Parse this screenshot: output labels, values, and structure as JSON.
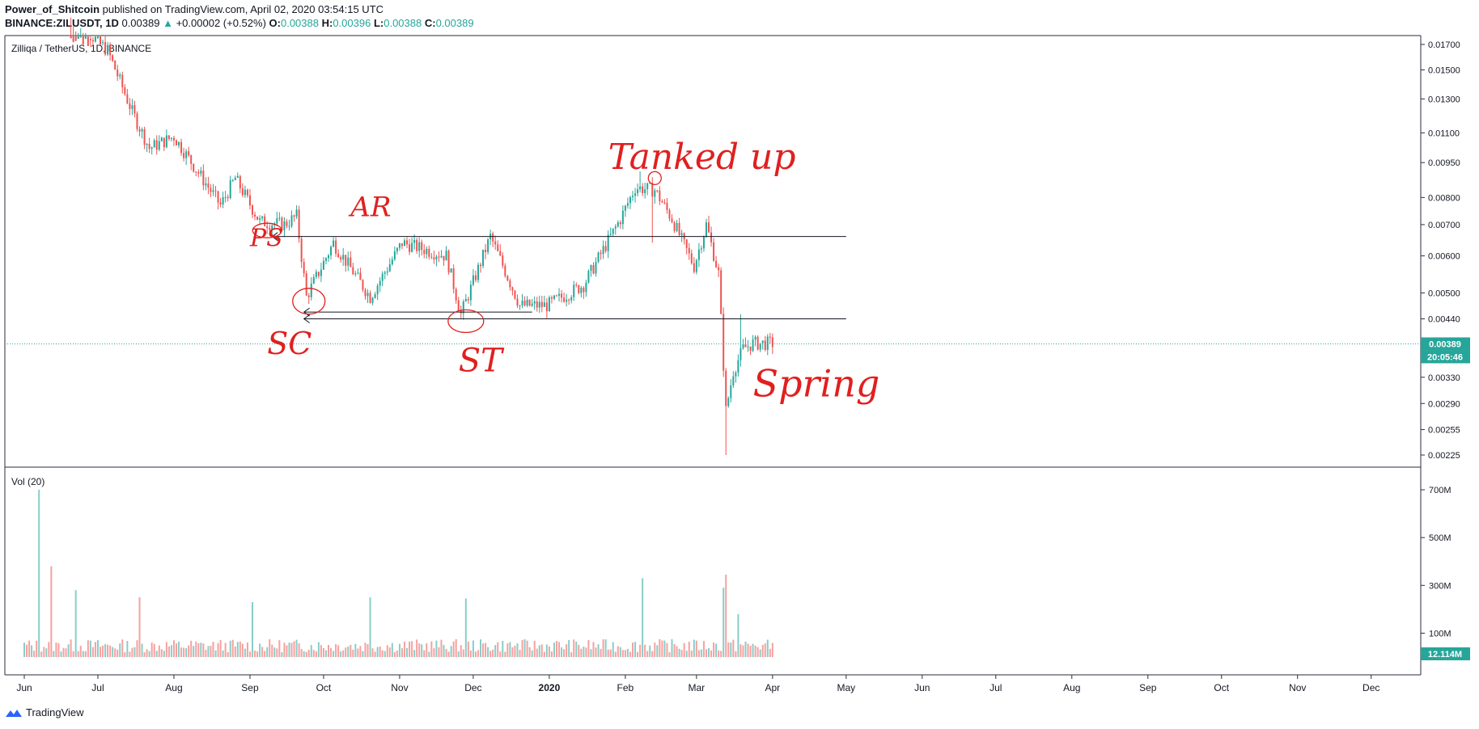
{
  "header": {
    "author": "Power_of_Shitcoin",
    "published_text": "published on TradingView.com, April 02, 2020 03:54:15 UTC",
    "symbol": "BINANCE:ZILUSDT, 1D",
    "last": "0.00389",
    "change": "+0.00002 (+0.52%)",
    "o_label": "O:",
    "o": "0.00388",
    "h_label": "H:",
    "h": "0.00396",
    "l_label": "L:",
    "l": "0.00388",
    "c_label": "C:",
    "c": "0.00389",
    "up_arrow": "▲"
  },
  "chart_data": {
    "type": "candlestick",
    "title": "Zilliqa / TetherUS, 1D, BINANCE",
    "price_axis": {
      "scale": "log",
      "ticks": [
        "0.01700",
        "0.01500",
        "0.01300",
        "0.01100",
        "0.00950",
        "0.00800",
        "0.00700",
        "0.00600",
        "0.00500",
        "0.00440",
        "0.00330",
        "0.00290",
        "0.00255",
        "0.00225"
      ],
      "last_price_label": "0.00389",
      "countdown_label": "20:05:46"
    },
    "time_axis": {
      "ticks": [
        "Jun",
        "Jul",
        "Aug",
        "Sep",
        "Oct",
        "Nov",
        "Dec",
        "2020",
        "Feb",
        "Mar",
        "Apr",
        "May",
        "Jun",
        "Jul",
        "Aug",
        "Sep",
        "Oct",
        "Nov",
        "Dec"
      ]
    },
    "price_path": [
      [
        "2019-06-20",
        0.0195
      ],
      [
        "2019-07-05",
        0.0165
      ],
      [
        "2019-07-15",
        0.0122
      ],
      [
        "2019-07-22",
        0.0102
      ],
      [
        "2019-08-01",
        0.0108
      ],
      [
        "2019-08-10",
        0.0092
      ],
      [
        "2019-08-20",
        0.0077
      ],
      [
        "2019-08-26",
        0.0088
      ],
      [
        "2019-09-05",
        0.0071
      ],
      [
        "2019-09-15",
        0.007
      ],
      [
        "2019-09-20",
        0.0073
      ],
      [
        "2019-09-24",
        0.0049
      ],
      [
        "2019-10-05",
        0.0064
      ],
      [
        "2019-10-20",
        0.0049
      ],
      [
        "2019-11-02",
        0.0064
      ],
      [
        "2019-11-20",
        0.006
      ],
      [
        "2019-11-26",
        0.0045
      ],
      [
        "2019-12-08",
        0.0066
      ],
      [
        "2019-12-20",
        0.0047
      ],
      [
        "2019-12-31",
        0.0047
      ],
      [
        "2020-01-15",
        0.0052
      ],
      [
        "2020-01-30",
        0.0072
      ],
      [
        "2020-02-05",
        0.0084
      ],
      [
        "2020-02-13",
        0.0083
      ],
      [
        "2020-02-20",
        0.0072
      ],
      [
        "2020-02-29",
        0.0057
      ],
      [
        "2020-03-05",
        0.007
      ],
      [
        "2020-03-10",
        0.0055
      ],
      [
        "2020-03-13",
        0.0028
      ],
      [
        "2020-03-16",
        0.0034
      ],
      [
        "2020-03-20",
        0.0038
      ],
      [
        "2020-03-24",
        0.0039
      ],
      [
        "2020-04-01",
        0.0039
      ]
    ],
    "spikes": [
      [
        "2020-02-07",
        0.0091
      ],
      [
        "2020-02-12",
        0.0064
      ],
      [
        "2020-03-13",
        0.00225
      ],
      [
        "2020-03-19",
        0.0045
      ]
    ],
    "horizontal_lines": [
      {
        "y": 0.0066,
        "x_start": "2019-09-10",
        "x_end": "2020-05-01"
      },
      {
        "y": 0.0044,
        "x_start": "2019-09-23",
        "x_end": "2020-05-01"
      },
      {
        "y": 0.00455,
        "x_start": "2019-09-23",
        "x_end": "2019-12-25"
      }
    ],
    "annotations": [
      {
        "text": "PS",
        "x": "2019-09-01",
        "y": 0.0063
      },
      {
        "text": "AR",
        "x": "2019-10-12",
        "y": 0.0073
      },
      {
        "text": "SC",
        "x": "2019-09-08",
        "y": 0.0037
      },
      {
        "text": "ST",
        "x": "2019-11-25",
        "y": 0.0034
      },
      {
        "text": "Tanked up",
        "x": "2020-01-25",
        "y": 0.0092
      },
      {
        "text": "Spring",
        "x": "2020-03-24",
        "y": 0.003
      }
    ],
    "volume": {
      "label": "Vol (20)",
      "ticks": [
        "700M",
        "500M",
        "300M",
        "100M"
      ],
      "last_label": "12.114M",
      "spikes": [
        [
          "2019-06-07",
          700
        ],
        [
          "2019-06-12",
          380
        ],
        [
          "2019-06-22",
          280
        ],
        [
          "2019-07-18",
          250
        ],
        [
          "2019-09-02",
          230
        ],
        [
          "2019-10-20",
          250
        ],
        [
          "2019-11-28",
          245
        ],
        [
          "2020-02-08",
          330
        ],
        [
          "2020-03-12",
          290
        ],
        [
          "2020-03-13",
          345
        ],
        [
          "2020-03-18",
          180
        ]
      ]
    }
  },
  "footer": {
    "brand": "TradingView"
  },
  "colors": {
    "up": "#26a69a",
    "down": "#ef5350",
    "annotation": "#e0201f",
    "line": "#131722"
  }
}
